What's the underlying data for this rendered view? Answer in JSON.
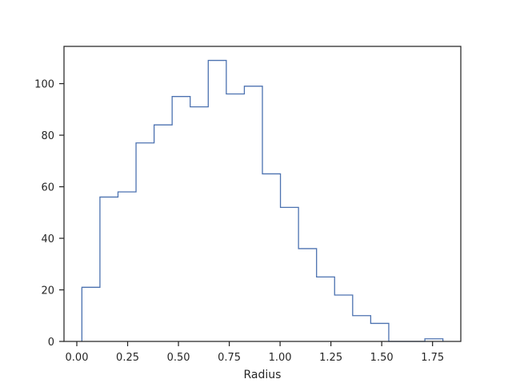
{
  "chart_data": {
    "type": "histogram",
    "title": "",
    "xlabel": "Radius",
    "ylabel": "",
    "bin_edges": [
      0.025,
      0.1138,
      0.2026,
      0.2914,
      0.3802,
      0.469,
      0.5578,
      0.6466,
      0.7354,
      0.8242,
      0.913,
      1.0018,
      1.0906,
      1.1794,
      1.2682,
      1.357,
      1.4458,
      1.5346,
      1.6234,
      1.7122,
      1.801
    ],
    "counts": [
      21,
      56,
      58,
      77,
      84,
      95,
      91,
      109,
      96,
      99,
      65,
      52,
      36,
      25,
      18,
      10,
      7,
      0,
      0,
      1
    ],
    "xlim": [
      -0.063,
      1.889
    ],
    "ylim": [
      0,
      114.45
    ],
    "x_ticks": [
      0.0,
      0.25,
      0.5,
      0.75,
      1.0,
      1.25,
      1.5,
      1.75
    ],
    "x_tick_labels": [
      "0.00",
      "0.25",
      "0.50",
      "0.75",
      "1.00",
      "1.25",
      "1.50",
      "1.75"
    ],
    "y_ticks": [
      0,
      20,
      40,
      60,
      80,
      100
    ],
    "y_tick_labels": [
      "0",
      "20",
      "40",
      "60",
      "80",
      "100"
    ],
    "grid": false,
    "histtype": "step",
    "colors": {
      "series": "#4c72b0",
      "axes": "#262626",
      "background": "#ffffff"
    }
  }
}
